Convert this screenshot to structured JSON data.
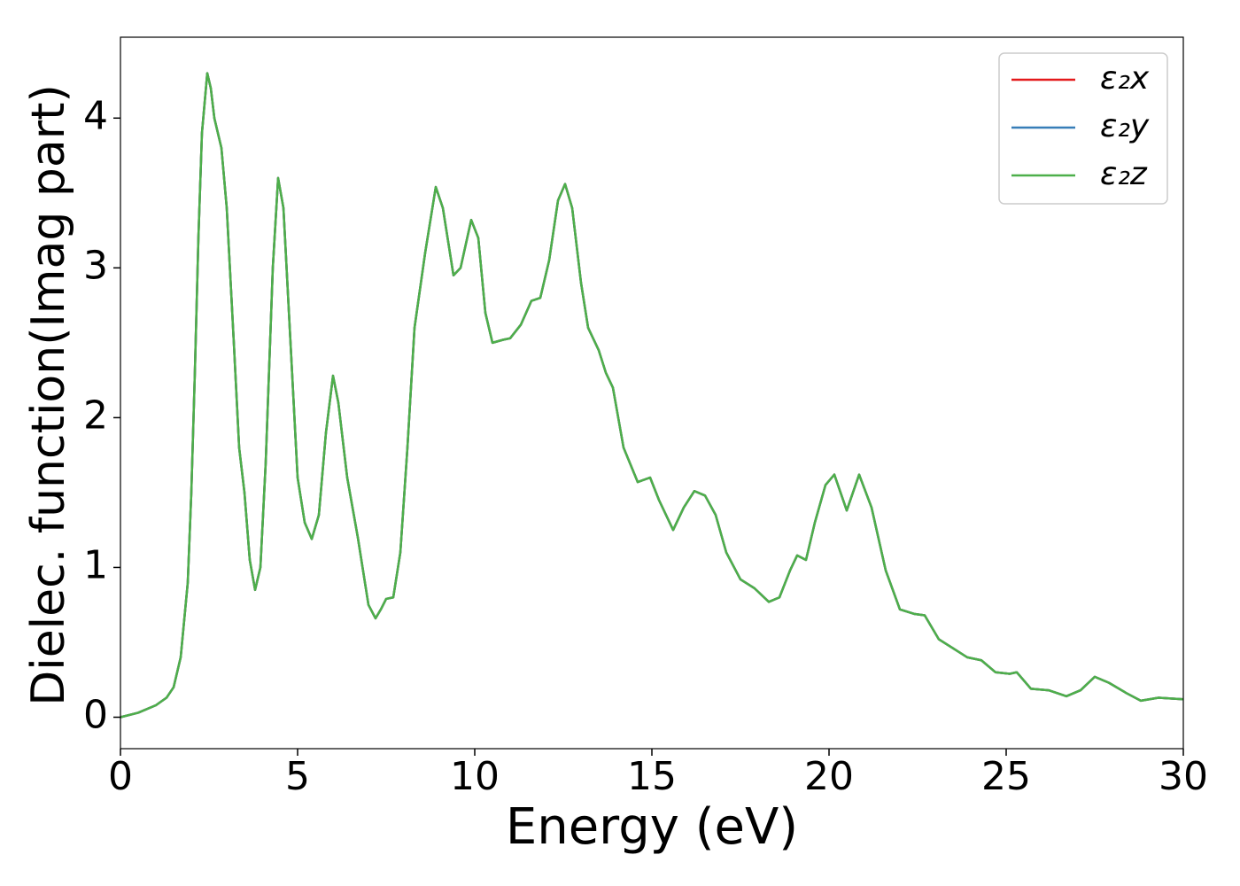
{
  "chart_data": {
    "type": "line",
    "xlabel": "Energy (eV)",
    "ylabel": "Dielec. function(Imag part)",
    "x": [
      0,
      0.5,
      1.0,
      1.3,
      1.5,
      1.7,
      1.9,
      2.0,
      2.1,
      2.2,
      2.3,
      2.45,
      2.55,
      2.65,
      2.85,
      3.0,
      3.2,
      3.35,
      3.5,
      3.65,
      3.8,
      3.95,
      4.1,
      4.3,
      4.45,
      4.6,
      4.8,
      5.0,
      5.2,
      5.4,
      5.6,
      5.8,
      6.0,
      6.15,
      6.4,
      6.7,
      7.0,
      7.2,
      7.35,
      7.5,
      7.7,
      7.9,
      8.1,
      8.3,
      8.6,
      8.9,
      9.1,
      9.4,
      9.6,
      9.9,
      10.1,
      10.3,
      10.5,
      10.8,
      11.0,
      11.3,
      11.6,
      11.85,
      12.1,
      12.35,
      12.55,
      12.75,
      13.0,
      13.2,
      13.5,
      13.7,
      13.9,
      14.2,
      14.6,
      14.95,
      15.2,
      15.6,
      15.9,
      16.2,
      16.5,
      16.8,
      17.1,
      17.5,
      17.9,
      18.3,
      18.6,
      18.9,
      19.1,
      19.35,
      19.6,
      19.9,
      20.15,
      20.5,
      20.85,
      21.2,
      21.6,
      22.0,
      22.4,
      22.7,
      23.1,
      23.5,
      23.9,
      24.3,
      24.7,
      25.1,
      25.3,
      25.7,
      26.2,
      26.7,
      27.1,
      27.5,
      27.9,
      28.4,
      28.8,
      29.3,
      30.0
    ],
    "series": [
      {
        "name": "ε₂x",
        "color": "#e41a1c",
        "values": [
          0,
          0.03,
          0.08,
          0.13,
          0.2,
          0.4,
          0.9,
          1.5,
          2.3,
          3.2,
          3.9,
          4.3,
          4.2,
          4.0,
          3.8,
          3.4,
          2.5,
          1.8,
          1.5,
          1.05,
          0.85,
          1.0,
          1.7,
          3.0,
          3.6,
          3.4,
          2.5,
          1.6,
          1.3,
          1.19,
          1.35,
          1.9,
          2.28,
          2.1,
          1.6,
          1.2,
          0.75,
          0.66,
          0.72,
          0.79,
          0.8,
          1.1,
          1.8,
          2.6,
          3.1,
          3.54,
          3.4,
          2.95,
          3.0,
          3.32,
          3.2,
          2.7,
          2.5,
          2.52,
          2.53,
          2.62,
          2.78,
          2.8,
          3.05,
          3.45,
          3.56,
          3.4,
          2.9,
          2.6,
          2.45,
          2.3,
          2.2,
          1.8,
          1.57,
          1.6,
          1.45,
          1.25,
          1.4,
          1.51,
          1.48,
          1.35,
          1.1,
          0.92,
          0.86,
          0.77,
          0.8,
          0.98,
          1.08,
          1.05,
          1.3,
          1.55,
          1.62,
          1.38,
          1.62,
          1.4,
          0.98,
          0.72,
          0.69,
          0.68,
          0.52,
          0.46,
          0.4,
          0.38,
          0.3,
          0.29,
          0.3,
          0.19,
          0.18,
          0.14,
          0.18,
          0.27,
          0.23,
          0.16,
          0.11,
          0.13,
          0.12
        ]
      },
      {
        "name": "ε₂y",
        "color": "#377eb8",
        "values": [
          0,
          0.03,
          0.08,
          0.13,
          0.2,
          0.4,
          0.9,
          1.5,
          2.3,
          3.2,
          3.9,
          4.3,
          4.2,
          4.0,
          3.8,
          3.4,
          2.5,
          1.8,
          1.5,
          1.05,
          0.85,
          1.0,
          1.7,
          3.0,
          3.6,
          3.4,
          2.5,
          1.6,
          1.3,
          1.19,
          1.35,
          1.9,
          2.28,
          2.1,
          1.6,
          1.2,
          0.75,
          0.66,
          0.72,
          0.79,
          0.8,
          1.1,
          1.8,
          2.6,
          3.1,
          3.54,
          3.4,
          2.95,
          3.0,
          3.32,
          3.2,
          2.7,
          2.5,
          2.52,
          2.53,
          2.62,
          2.78,
          2.8,
          3.05,
          3.45,
          3.56,
          3.4,
          2.9,
          2.6,
          2.45,
          2.3,
          2.2,
          1.8,
          1.57,
          1.6,
          1.45,
          1.25,
          1.4,
          1.51,
          1.48,
          1.35,
          1.1,
          0.92,
          0.86,
          0.77,
          0.8,
          0.98,
          1.08,
          1.05,
          1.3,
          1.55,
          1.62,
          1.38,
          1.62,
          1.4,
          0.98,
          0.72,
          0.69,
          0.68,
          0.52,
          0.46,
          0.4,
          0.38,
          0.3,
          0.29,
          0.3,
          0.19,
          0.18,
          0.14,
          0.18,
          0.27,
          0.23,
          0.16,
          0.11,
          0.13,
          0.12
        ]
      },
      {
        "name": "ε₂z",
        "color": "#4daf4a",
        "values": [
          0,
          0.03,
          0.08,
          0.13,
          0.2,
          0.4,
          0.9,
          1.5,
          2.3,
          3.2,
          3.9,
          4.3,
          4.2,
          4.0,
          3.8,
          3.4,
          2.5,
          1.8,
          1.5,
          1.05,
          0.85,
          1.0,
          1.7,
          3.0,
          3.6,
          3.4,
          2.5,
          1.6,
          1.3,
          1.19,
          1.35,
          1.9,
          2.28,
          2.1,
          1.6,
          1.2,
          0.75,
          0.66,
          0.72,
          0.79,
          0.8,
          1.1,
          1.8,
          2.6,
          3.1,
          3.54,
          3.4,
          2.95,
          3.0,
          3.32,
          3.2,
          2.7,
          2.5,
          2.52,
          2.53,
          2.62,
          2.78,
          2.8,
          3.05,
          3.45,
          3.56,
          3.4,
          2.9,
          2.6,
          2.45,
          2.3,
          2.2,
          1.8,
          1.57,
          1.6,
          1.45,
          1.25,
          1.4,
          1.51,
          1.48,
          1.35,
          1.1,
          0.92,
          0.86,
          0.77,
          0.8,
          0.98,
          1.08,
          1.05,
          1.3,
          1.55,
          1.62,
          1.38,
          1.62,
          1.4,
          0.98,
          0.72,
          0.69,
          0.68,
          0.52,
          0.46,
          0.4,
          0.38,
          0.3,
          0.29,
          0.3,
          0.19,
          0.18,
          0.14,
          0.18,
          0.27,
          0.23,
          0.16,
          0.11,
          0.13,
          0.12
        ]
      }
    ],
    "xlim": [
      0,
      30
    ],
    "xticks": [
      0,
      5,
      10,
      15,
      20,
      25,
      30
    ],
    "ylim": [
      -0.21,
      4.54
    ],
    "yticks": [
      0,
      1,
      2,
      3,
      4
    ],
    "grid": false,
    "legend": "upper right"
  }
}
